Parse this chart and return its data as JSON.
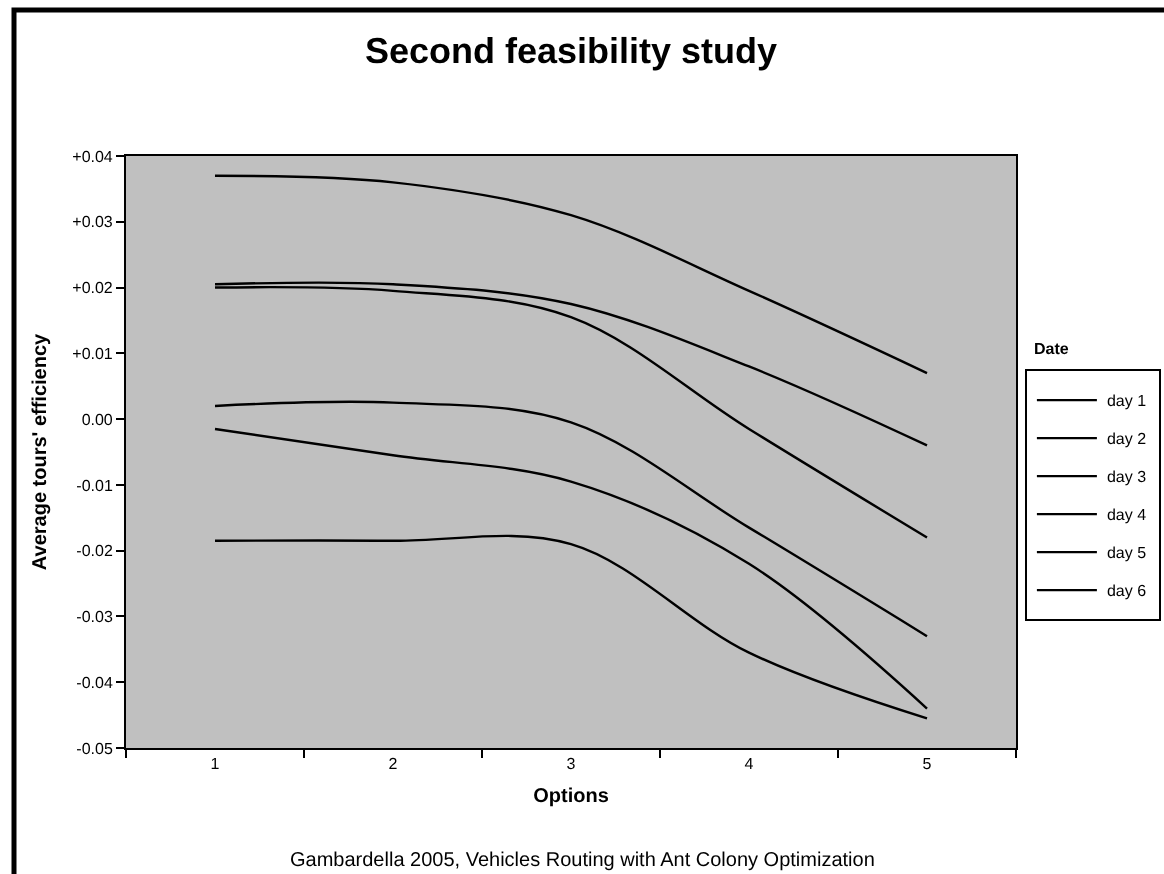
{
  "chart_data": {
    "type": "line",
    "title": "Second feasibility study",
    "xlabel": "Options",
    "ylabel": "Average tours' efficiency",
    "legend_title": "Date",
    "annotations": [
      "Gambardella 2005, Vehicles Routing with Ant Colony Optimization"
    ],
    "categories": [
      "1",
      "2",
      "3",
      "4",
      "5"
    ],
    "ylim": [
      -0.05,
      0.04
    ],
    "yticks": [
      -0.05,
      -0.04,
      -0.03,
      -0.02,
      -0.01,
      {
        "value": 0,
        "label": "0.00"
      },
      {
        "value": 0.01,
        "label": "+0.01"
      },
      {
        "value": 0.02,
        "label": "+0.02"
      },
      {
        "value": 0.03,
        "label": "+0.03"
      },
      {
        "value": 0.04,
        "label": "+0.04"
      }
    ],
    "legend": "right",
    "line_style": "solid",
    "series": [
      {
        "name": "day 1",
        "color": "#000000",
        "values": [
          0.037,
          0.036,
          0.031,
          0.0195,
          0.007
        ]
      },
      {
        "name": "day 2",
        "color": "#000000",
        "values": [
          0.0205,
          0.0205,
          0.0175,
          0.008,
          -0.004
        ]
      },
      {
        "name": "day 3",
        "color": "#000000",
        "values": [
          0.02,
          0.0195,
          0.0155,
          -0.0015,
          -0.018
        ]
      },
      {
        "name": "day 4",
        "color": "#000000",
        "values": [
          0.002,
          0.0025,
          -0.0005,
          -0.0165,
          -0.033
        ]
      },
      {
        "name": "day 5",
        "color": "#000000",
        "values": [
          -0.0015,
          -0.0055,
          -0.0095,
          -0.022,
          -0.044
        ]
      },
      {
        "name": "day 6",
        "color": "#000000",
        "values": [
          -0.0185,
          -0.0185,
          -0.019,
          -0.0355,
          -0.0455
        ]
      }
    ]
  }
}
